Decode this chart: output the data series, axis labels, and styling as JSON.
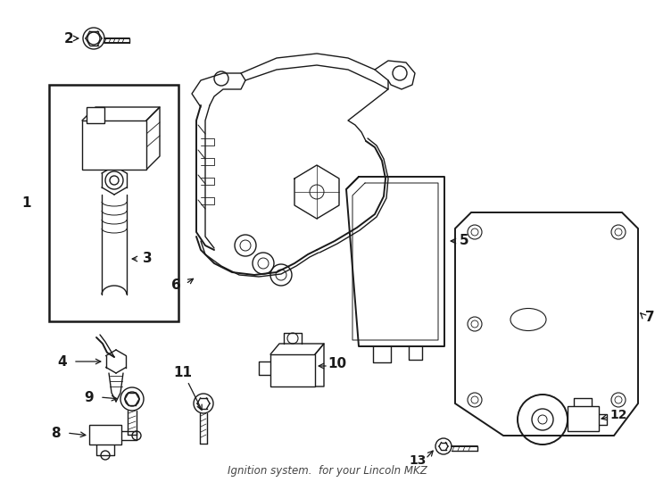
{
  "title": "Ignition system.",
  "subtitle": "for your Lincoln MKZ",
  "bg": "#ffffff",
  "lc": "#1a1a1a",
  "fig_w": 7.34,
  "fig_h": 5.4,
  "dpi": 100
}
